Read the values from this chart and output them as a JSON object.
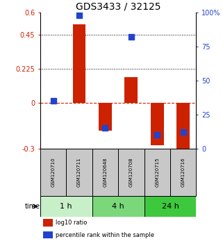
{
  "title": "GDS3433 / 32125",
  "samples": [
    "GSM120710",
    "GSM120711",
    "GSM120648",
    "GSM120708",
    "GSM120715",
    "GSM120716"
  ],
  "log10_ratio": [
    0.002,
    0.52,
    -0.18,
    0.17,
    -0.28,
    -0.32
  ],
  "percentile_rank": [
    35,
    98,
    15,
    82,
    10,
    12
  ],
  "ylim_left": [
    -0.3,
    0.6
  ],
  "ylim_right": [
    0,
    100
  ],
  "yticks_left": [
    -0.3,
    0,
    0.225,
    0.45,
    0.6
  ],
  "yticks_right": [
    0,
    25,
    50,
    75,
    100
  ],
  "hlines": [
    0.225,
    0.45
  ],
  "time_groups": [
    {
      "label": "1 h",
      "cols": [
        0,
        1
      ],
      "color": "#c8f0c8"
    },
    {
      "label": "4 h",
      "cols": [
        2,
        3
      ],
      "color": "#7ad87a"
    },
    {
      "label": "24 h",
      "cols": [
        4,
        5
      ],
      "color": "#3ec83e"
    }
  ],
  "bar_color": "#cc2200",
  "dot_color": "#2244cc",
  "bar_width": 0.5,
  "dot_size": 35,
  "background_color": "#ffffff",
  "sample_box_color": "#c8c8c8",
  "title_fontsize": 10,
  "tick_fontsize": 7,
  "sample_fontsize": 5,
  "time_fontsize": 8,
  "legend_fontsize": 6
}
